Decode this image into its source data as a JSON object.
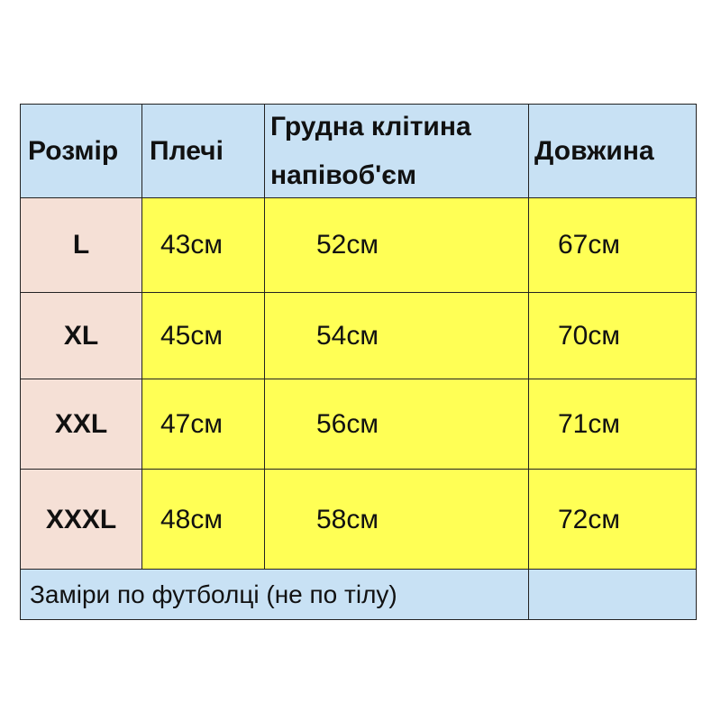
{
  "headers": [
    "Розмір",
    "Плечі",
    "Грудна клітина",
    "напівоб'єм",
    "Довжина"
  ],
  "rows": [
    {
      "size": "L",
      "shoulders": "43см",
      "chest": "52см",
      "length": "67см"
    },
    {
      "size": "XL",
      "shoulders": "45см",
      "chest": "54см",
      "length": "70см"
    },
    {
      "size": "XXL",
      "shoulders": "47см",
      "chest": "56см",
      "length": "71см"
    },
    {
      "size": "XXXL",
      "shoulders": "48см",
      "chest": "58см",
      "length": "72см"
    }
  ],
  "footer": "Заміри по футболці (не по тілу)",
  "colors": {
    "header": "#c8e1f4",
    "size_column": "#f5e0d6",
    "data": "#ffff55"
  }
}
